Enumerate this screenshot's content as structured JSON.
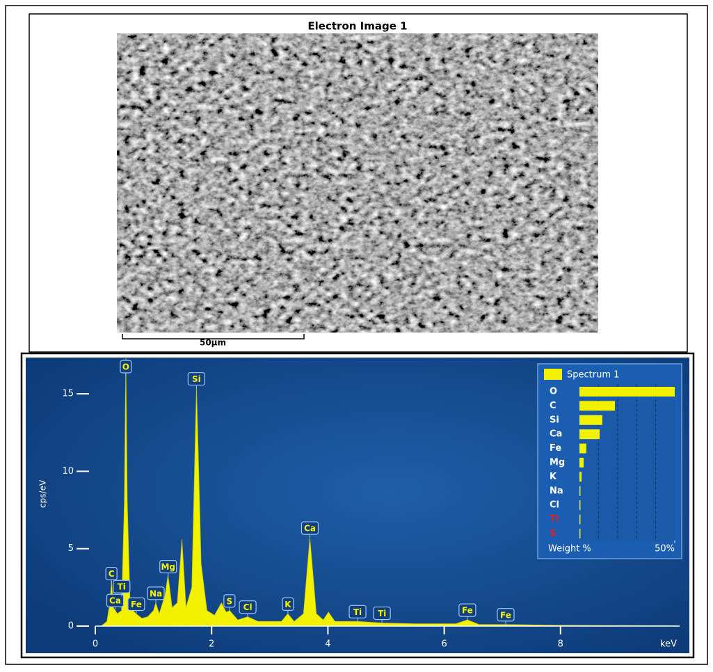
{
  "image": {
    "title": "Electron Image 1",
    "scale_label": "50µm"
  },
  "chart_data": [
    {
      "type": "area",
      "y_label": "cps/eV",
      "x_label": "keV",
      "xlim": [
        0,
        10
      ],
      "xticks": [
        0,
        2,
        4,
        6,
        8
      ],
      "ylim": [
        0,
        17.3
      ],
      "yticks": [
        0,
        5,
        10,
        15
      ],
      "color": "#f2f200",
      "x": [
        0.1,
        0.2,
        0.25,
        0.28,
        0.31,
        0.38,
        0.45,
        0.5,
        0.525,
        0.55,
        0.6,
        0.7,
        0.8,
        0.9,
        1.0,
        1.04,
        1.1,
        1.2,
        1.25,
        1.32,
        1.41,
        1.49,
        1.56,
        1.66,
        1.74,
        1.82,
        1.92,
        2.05,
        2.17,
        2.25,
        2.31,
        2.45,
        2.62,
        2.8,
        3.2,
        3.31,
        3.42,
        3.58,
        3.69,
        3.8,
        3.92,
        4.01,
        4.12,
        4.51,
        4.93,
        5.5,
        6.2,
        6.4,
        6.6,
        7.06,
        8,
        9,
        10
      ],
      "values": [
        0,
        0.3,
        1.5,
        2.9,
        1.2,
        0.8,
        1.0,
        8,
        17.3,
        8,
        1.2,
        0.8,
        0.5,
        0.6,
        1.0,
        1.5,
        0.8,
        2.0,
        3.3,
        1.2,
        1.5,
        5.6,
        1.2,
        2.5,
        15.5,
        4,
        1.0,
        0.7,
        1.5,
        0.9,
        1.0,
        0.4,
        0.6,
        0.3,
        0.3,
        0.8,
        0.3,
        0.8,
        5.7,
        0.8,
        0.4,
        0.9,
        0.3,
        0.3,
        0.2,
        0.15,
        0.15,
        0.4,
        0.1,
        0.1,
        0.05,
        0.03,
        0.02
      ],
      "peaks": [
        {
          "label": "C",
          "x": 0.277
        },
        {
          "label": "Ca",
          "x": 0.341
        },
        {
          "label": "Ti",
          "x": 0.452
        },
        {
          "label": "O",
          "x": 0.525
        },
        {
          "label": "Fe",
          "x": 0.705
        },
        {
          "label": "Na",
          "x": 1.041
        },
        {
          "label": "Mg",
          "x": 1.253
        },
        {
          "label": "Si",
          "x": 1.739
        },
        {
          "label": "S",
          "x": 2.307
        },
        {
          "label": "Cl",
          "x": 2.621
        },
        {
          "label": "K",
          "x": 3.312
        },
        {
          "label": "Ca",
          "x": 3.69
        },
        {
          "label": "Ti",
          "x": 4.51
        },
        {
          "label": "Ti",
          "x": 4.93
        },
        {
          "label": "Fe",
          "x": 6.398
        },
        {
          "label": "Fe",
          "x": 7.057
        }
      ]
    },
    {
      "type": "hbar",
      "x_label": "Weight %",
      "xlim": [
        0,
        50
      ],
      "xticks": [
        {
          "value": 50,
          "label": "50%"
        }
      ],
      "grid_lines": [
        10,
        20,
        30,
        40
      ],
      "series": [
        {
          "name": "Spectrum 1",
          "color": "#f2f200",
          "values": [
            50,
            18.6,
            12,
            10.6,
            3.6,
            2.2,
            1.1,
            0.5,
            0.3,
            0.2,
            0.1
          ]
        }
      ],
      "categories": [
        "O",
        "C",
        "Si",
        "Ca",
        "Fe",
        "Mg",
        "K",
        "Na",
        "Cl",
        "Ti",
        "S"
      ],
      "category_colors": [
        "#ffffff",
        "#ffffff",
        "#ffffff",
        "#ffffff",
        "#ffffff",
        "#ffffff",
        "#ffffff",
        "#ffffff",
        "#ffffff",
        "#e02020",
        "#e02020"
      ]
    }
  ]
}
